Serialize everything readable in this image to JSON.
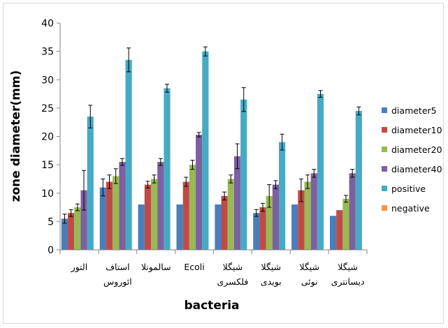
{
  "chart_data": {
    "type": "bar",
    "title": "",
    "xlabel": "bacteria",
    "ylabel": "zone diameter(mm)",
    "ylim": [
      0,
      40
    ],
    "yticks": [
      0,
      5,
      10,
      15,
      20,
      25,
      30,
      35,
      40
    ],
    "grid": false,
    "legend_position": "right",
    "error_bars": true,
    "categories": [
      [
        "التور"
      ],
      [
        "استاف",
        "ائوروس"
      ],
      [
        "سالمونلا"
      ],
      [
        "Ecoli"
      ],
      [
        "شیگلا",
        "فلکسری"
      ],
      [
        "شیگلا",
        "بویدی"
      ],
      [
        "شیگلا",
        "نوئی"
      ],
      [
        "شیگلا",
        "دیسانتری"
      ]
    ],
    "series": [
      {
        "name": "diameter5",
        "color": "#4a7ebb",
        "values": [
          5.5,
          11,
          8,
          8,
          8,
          6.5,
          8,
          6
        ],
        "errors": [
          0.8,
          1.5,
          0,
          0,
          0,
          0.6,
          0,
          0
        ]
      },
      {
        "name": "diameter10",
        "color": "#be4b48",
        "values": [
          6.5,
          12,
          11.5,
          12,
          9.5,
          7.5,
          10.5,
          7
        ],
        "errors": [
          0.6,
          1.2,
          0.6,
          0.8,
          0.7,
          0.7,
          2,
          0
        ]
      },
      {
        "name": "diameter20",
        "color": "#98b954",
        "values": [
          7.5,
          13,
          12.5,
          15,
          12.5,
          9.5,
          12,
          9
        ],
        "errors": [
          0.6,
          1.3,
          0.7,
          0.8,
          0.7,
          2,
          1.2,
          0.6
        ]
      },
      {
        "name": "diameter40",
        "color": "#7d60a0",
        "values": [
          10.5,
          15.5,
          15.5,
          20.3,
          16.5,
          11.5,
          13.5,
          13.5
        ],
        "errors": [
          3.5,
          0.6,
          0.6,
          0.4,
          2.2,
          0.7,
          0.7,
          0.7
        ]
      },
      {
        "name": "positive",
        "color": "#46aac5",
        "values": [
          23.5,
          33.5,
          28.5,
          35,
          26.5,
          19,
          27.5,
          24.5
        ],
        "errors": [
          2,
          2.1,
          0.7,
          0.8,
          2.1,
          1.4,
          0.6,
          0.7
        ]
      },
      {
        "name": "negative",
        "color": "#f79646",
        "values": [
          0,
          0,
          0,
          0,
          0,
          0,
          0,
          0
        ],
        "errors": [
          0,
          0,
          0,
          0,
          0,
          0,
          0,
          0
        ]
      }
    ]
  }
}
